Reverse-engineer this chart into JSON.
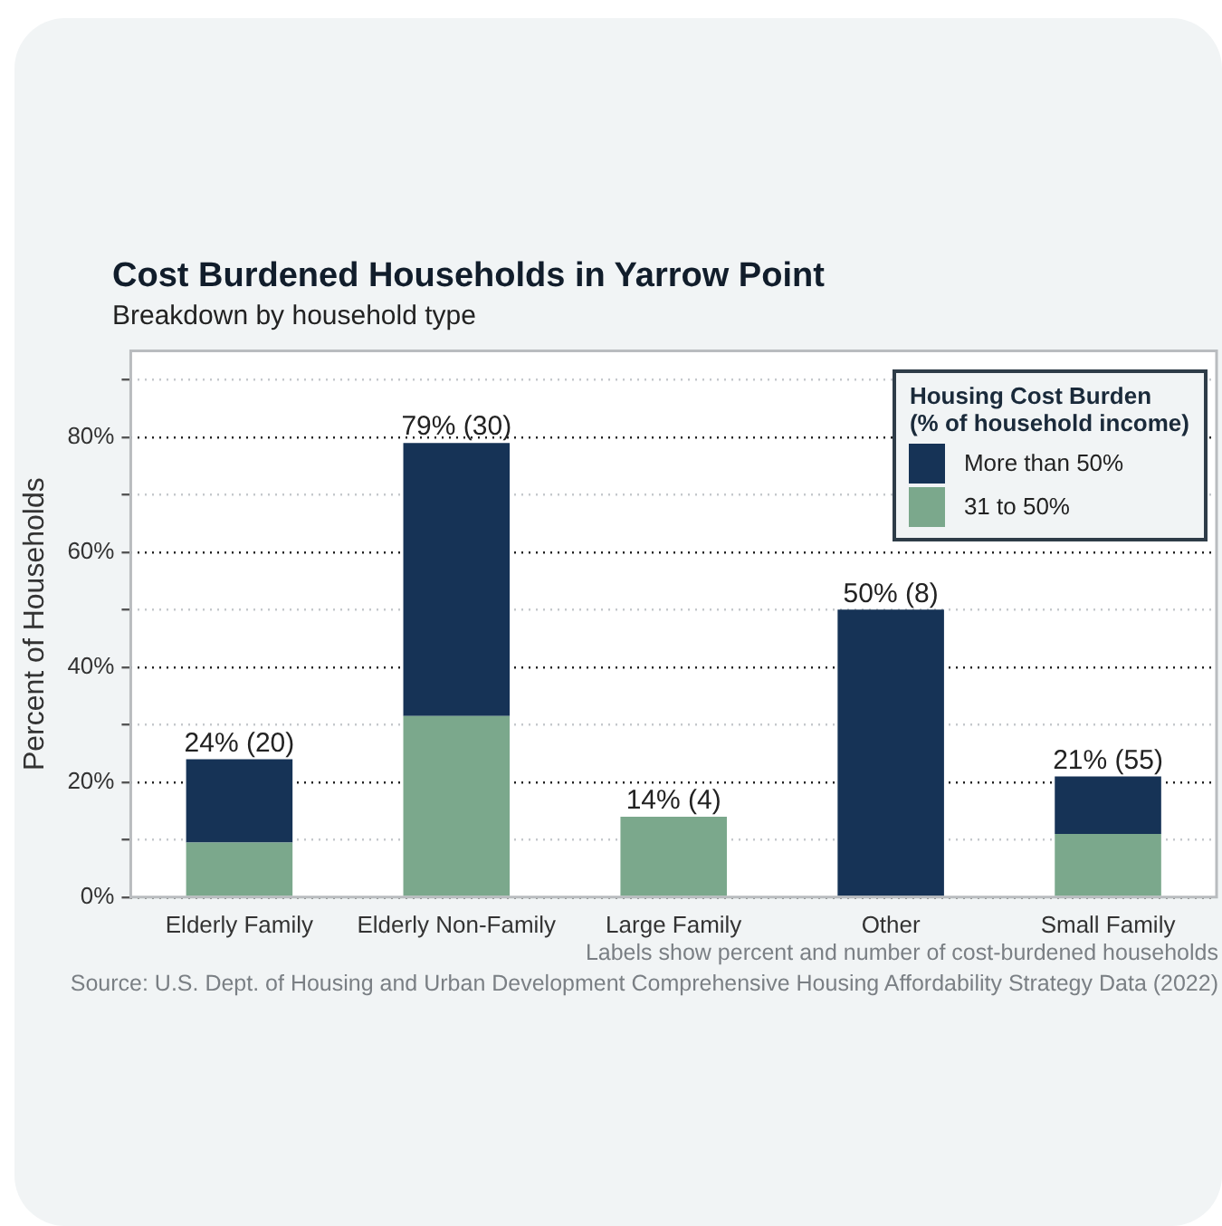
{
  "chart_data": {
    "type": "bar",
    "title": "Cost Burdened Households in Yarrow Point",
    "subtitle": "Breakdown by household type",
    "ylabel": "Percent of Households",
    "legend_title": "Housing Cost Burden\n(% of household income)",
    "categories": [
      "Elderly Family",
      "Elderly Non-Family",
      "Large Family",
      "Other",
      "Small Family"
    ],
    "stacked": true,
    "series": [
      {
        "name": "31 to 50%",
        "color": "#7ba88c",
        "values": [
          9.5,
          31.5,
          14,
          0,
          11
        ]
      },
      {
        "name": "More than 50%",
        "color": "#163356",
        "values": [
          14.5,
          47.5,
          0,
          50,
          10
        ]
      }
    ],
    "totals": [
      "24% (20)",
      "79% (30)",
      "14% (4)",
      "50% (8)",
      "21% (55)"
    ],
    "ylim": [
      0,
      95
    ],
    "yticks": [
      {
        "value": 0,
        "label": "0%"
      },
      {
        "value": 10,
        "label": null
      },
      {
        "value": 20,
        "label": "20%"
      },
      {
        "value": 30,
        "label": null
      },
      {
        "value": 40,
        "label": "40%"
      },
      {
        "value": 50,
        "label": null
      },
      {
        "value": 60,
        "label": "60%"
      },
      {
        "value": 70,
        "label": null
      },
      {
        "value": 80,
        "label": "80%"
      },
      {
        "value": 90,
        "label": null
      }
    ],
    "grid": "y",
    "legend": "top right",
    "annotations": [
      "Labels show percent and number of cost-burdened households",
      "Source: U.S. Dept. of Housing and Urban Development Comprehensive Housing Affordability Strategy Data (2022)"
    ]
  }
}
